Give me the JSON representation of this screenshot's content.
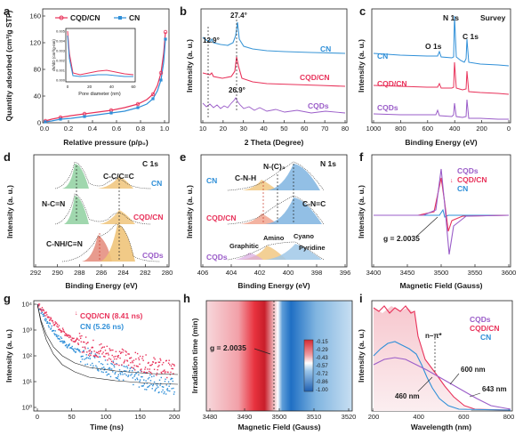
{
  "colors": {
    "cn": "#2f8fd8",
    "cqdcn": "#e8325a",
    "cqds": "#9a5cc8",
    "c1s_a": "#4daf6a",
    "c1s_b": "#e3a23c",
    "c1s_c": "#d45a4a",
    "n1s_a": "#3e8cc6",
    "n1s_b": "#e3a23c",
    "n1s_c": "#d4736a"
  },
  "panels": [
    {
      "id": "a",
      "letter": "a",
      "type": "line",
      "xlabel": "Relative pressure (p/p₀)",
      "ylabel": "Quantity adsorbed (cm³/g STP)",
      "xticks": [
        "0.0",
        "0.2",
        "0.4",
        "0.6",
        "0.8",
        "1.0"
      ],
      "yticks": [
        "0",
        "40",
        "80",
        "120",
        "160"
      ],
      "legend": [
        "CQD/CN",
        "CN"
      ],
      "inset": {
        "xlabel": "Pore diameter (nm)",
        "ylabel": "dV/dD (cm³/g-nm)",
        "xticks": [
          "0",
          "20",
          "40",
          "60"
        ],
        "yticks": [
          "0.000",
          "0.001",
          "0.002",
          "0.003",
          "0.004",
          "0.005"
        ]
      }
    },
    {
      "id": "b",
      "letter": "b",
      "type": "line",
      "xlabel": "2 Theta (Degree)",
      "ylabel": "Intensity (a. u.)",
      "xticks": [
        "10",
        "20",
        "30",
        "40",
        "50",
        "60",
        "70",
        "80"
      ],
      "series": [
        "CN",
        "CQD/CN",
        "CQDs"
      ],
      "annotations": [
        "12.9°",
        "27.4°",
        "26.9°"
      ]
    },
    {
      "id": "c",
      "letter": "c",
      "type": "line",
      "xlabel": "Binding Energy (eV)",
      "ylabel": "Intensity (a. u.)",
      "xticks": [
        "1000",
        "800",
        "600",
        "400",
        "200",
        "0"
      ],
      "series": [
        "CN",
        "CQD/CN",
        "CQDs"
      ],
      "annotations": [
        "O 1s",
        "N 1s",
        "C 1s",
        "Survey"
      ]
    },
    {
      "id": "d",
      "letter": "d",
      "type": "line",
      "xlabel": "Binding Energy (eV)",
      "ylabel": "Intensity (a. u.)",
      "xticks": [
        "292",
        "290",
        "288",
        "286",
        "284",
        "282",
        "280"
      ],
      "series": [
        "CN",
        "CQD/CN",
        "CQDs"
      ],
      "annotations": [
        "C 1s",
        "C-C/C=C",
        "N-C=N",
        "C-NH/C≡N"
      ]
    },
    {
      "id": "e",
      "letter": "e",
      "type": "line",
      "xlabel": "Binding Energy (eV)",
      "ylabel": "Intensity (a. u.)",
      "xticks": [
        "406",
        "404",
        "402",
        "400",
        "398",
        "396"
      ],
      "series": [
        "CN",
        "CQD/CN",
        "CQDs"
      ],
      "annotations": [
        "N 1s",
        "N-(C)₃",
        "C-N-H",
        "C-N=C",
        "Amino",
        "Cyano",
        "Graphitic",
        "Pyridine"
      ]
    },
    {
      "id": "f",
      "letter": "f",
      "type": "line",
      "xlabel": "Magnetic Field (Gauss)",
      "ylabel": "Intensity (a. u.)",
      "xticks": [
        "3400",
        "3450",
        "3500",
        "3550",
        "3600"
      ],
      "series": [
        "CQDs",
        "CQD/CN",
        "CN"
      ],
      "annotations": [
        "g = 2.0035"
      ]
    },
    {
      "id": "g",
      "letter": "g",
      "type": "scatter",
      "xlabel": "Time (ns)",
      "ylabel": "Intensity (a. u.)",
      "xticks": [
        "0",
        "50",
        "100",
        "150",
        "200"
      ],
      "yticks": [
        "10⁰",
        "10¹",
        "10²",
        "10³",
        "10⁴"
      ],
      "series": [
        "CQD/CN (8.41 ns)",
        "CN (5.26 ns)"
      ]
    },
    {
      "id": "h",
      "letter": "h",
      "type": "heatmap",
      "xlabel": "Magnetic Field (Gauss)",
      "ylabel": "Irradiation time (min)",
      "xticks": [
        "3480",
        "3490",
        "3500",
        "3510",
        "3520"
      ],
      "colorbar": [
        "-0.15",
        "-0.29",
        "-0.43",
        "-0.57",
        "-0.72",
        "-0.86",
        "-1.00"
      ],
      "annotations": [
        "g = 2.0035"
      ]
    },
    {
      "id": "i",
      "letter": "i",
      "type": "line",
      "xlabel": "Wavelength (nm)",
      "ylabel": "Intensity (a. u.)",
      "xticks": [
        "200",
        "400",
        "600",
        "800"
      ],
      "series": [
        "CQDs",
        "CQD/CN",
        "CN"
      ],
      "annotations": [
        "n–π*",
        "600 nm",
        "643 nm",
        "460 nm"
      ]
    }
  ],
  "chart_data": [
    {
      "type": "line",
      "panel": "a",
      "xlabel": "Relative pressure (p/p₀)",
      "ylabel": "Quantity adsorbed (cm³/g STP)",
      "xlim": [
        0,
        1.05
      ],
      "ylim": [
        0,
        160
      ],
      "series": [
        {
          "name": "CQD/CN",
          "x": [
            0.02,
            0.1,
            0.2,
            0.3,
            0.4,
            0.5,
            0.6,
            0.7,
            0.8,
            0.88,
            0.93,
            0.96,
            0.98,
            0.99
          ],
          "y": [
            3,
            6,
            8,
            10,
            12,
            14,
            16,
            19,
            24,
            32,
            45,
            65,
            100,
            140
          ]
        },
        {
          "name": "CN",
          "x": [
            0.02,
            0.1,
            0.2,
            0.3,
            0.4,
            0.5,
            0.6,
            0.7,
            0.8,
            0.88,
            0.93,
            0.96,
            0.98,
            0.99
          ],
          "y": [
            2,
            4,
            6,
            8,
            9,
            11,
            13,
            15,
            19,
            26,
            37,
            55,
            90,
            130
          ]
        }
      ]
    },
    {
      "type": "line",
      "panel": "b",
      "xlabel": "2 Theta (Degree)",
      "ylabel": "Intensity (a. u.)",
      "xlim": [
        10,
        80
      ],
      "series": [
        {
          "name": "CN",
          "peaks": [
            12.9,
            27.4
          ]
        },
        {
          "name": "CQD/CN",
          "peaks": [
            12.9,
            27.4
          ]
        },
        {
          "name": "CQDs",
          "peaks": [
            26.9
          ]
        }
      ]
    },
    {
      "type": "line",
      "panel": "c",
      "xlabel": "Binding Energy (eV)",
      "ylabel": "Intensity (a. u.)",
      "xlim": [
        1000,
        0
      ],
      "series": [
        {
          "name": "CN",
          "peaks": [
            531,
            399,
            288
          ]
        },
        {
          "name": "CQD/CN",
          "peaks": [
            531,
            399,
            288
          ]
        },
        {
          "name": "CQDs",
          "peaks": [
            531,
            399,
            285
          ]
        }
      ]
    },
    {
      "type": "line",
      "panel": "d",
      "xlabel": "Binding Energy (eV)",
      "ylabel": "Intensity (a. u.)",
      "xlim": [
        292,
        280
      ],
      "series": [
        {
          "name": "CN",
          "peaks": [
            288.1,
            284.8
          ]
        },
        {
          "name": "CQD/CN",
          "peaks": [
            288.1,
            284.8
          ]
        },
        {
          "name": "CQDs",
          "peaks": [
            286.3,
            284.8
          ]
        }
      ]
    },
    {
      "type": "line",
      "panel": "e",
      "xlabel": "Binding Energy (eV)",
      "ylabel": "Intensity (a. u.)",
      "xlim": [
        406,
        396
      ],
      "series": [
        {
          "name": "CN",
          "peaks": [
            401.0,
            400.0,
            398.6
          ]
        },
        {
          "name": "CQD/CN",
          "peaks": [
            401.0,
            400.0,
            398.6
          ]
        },
        {
          "name": "CQDs",
          "peaks": [
            400.9,
            399.5,
            398.7
          ]
        }
      ]
    },
    {
      "type": "line",
      "panel": "f",
      "xlabel": "Magnetic Field (Gauss)",
      "ylabel": "Intensity (a. u.)",
      "xlim": [
        3400,
        3600
      ],
      "series": [
        {
          "name": "CQDs"
        },
        {
          "name": "CQD/CN"
        },
        {
          "name": "CN"
        }
      ],
      "g_value": 2.0035,
      "center_field": 3500
    },
    {
      "type": "scatter",
      "panel": "g",
      "xlabel": "Time (ns)",
      "ylabel": "Intensity (a. u.)",
      "xlim": [
        0,
        200
      ],
      "ylim": [
        1,
        10000
      ],
      "yscale": "log",
      "series": [
        {
          "name": "CQD/CN (8.41 ns)",
          "lifetime_ns": 8.41
        },
        {
          "name": "CN (5.26 ns)",
          "lifetime_ns": 5.26
        }
      ]
    },
    {
      "type": "heatmap",
      "panel": "h",
      "xlabel": "Magnetic Field (Gauss)",
      "ylabel": "Irradiation time (min)",
      "xlim": [
        3480,
        3520
      ],
      "colorbar_range": [
        -1.0,
        -0.15
      ],
      "center_field": 3500,
      "g_value": 2.0035
    },
    {
      "type": "line",
      "panel": "i",
      "xlabel": "Wavelength (nm)",
      "ylabel": "Intensity (a. u.)",
      "xlim": [
        200,
        800
      ],
      "series": [
        {
          "name": "CQDs",
          "edge_nm": 643
        },
        {
          "name": "CQD/CN",
          "edge_nm": 600
        },
        {
          "name": "CN",
          "edge_nm": 460
        }
      ]
    }
  ]
}
